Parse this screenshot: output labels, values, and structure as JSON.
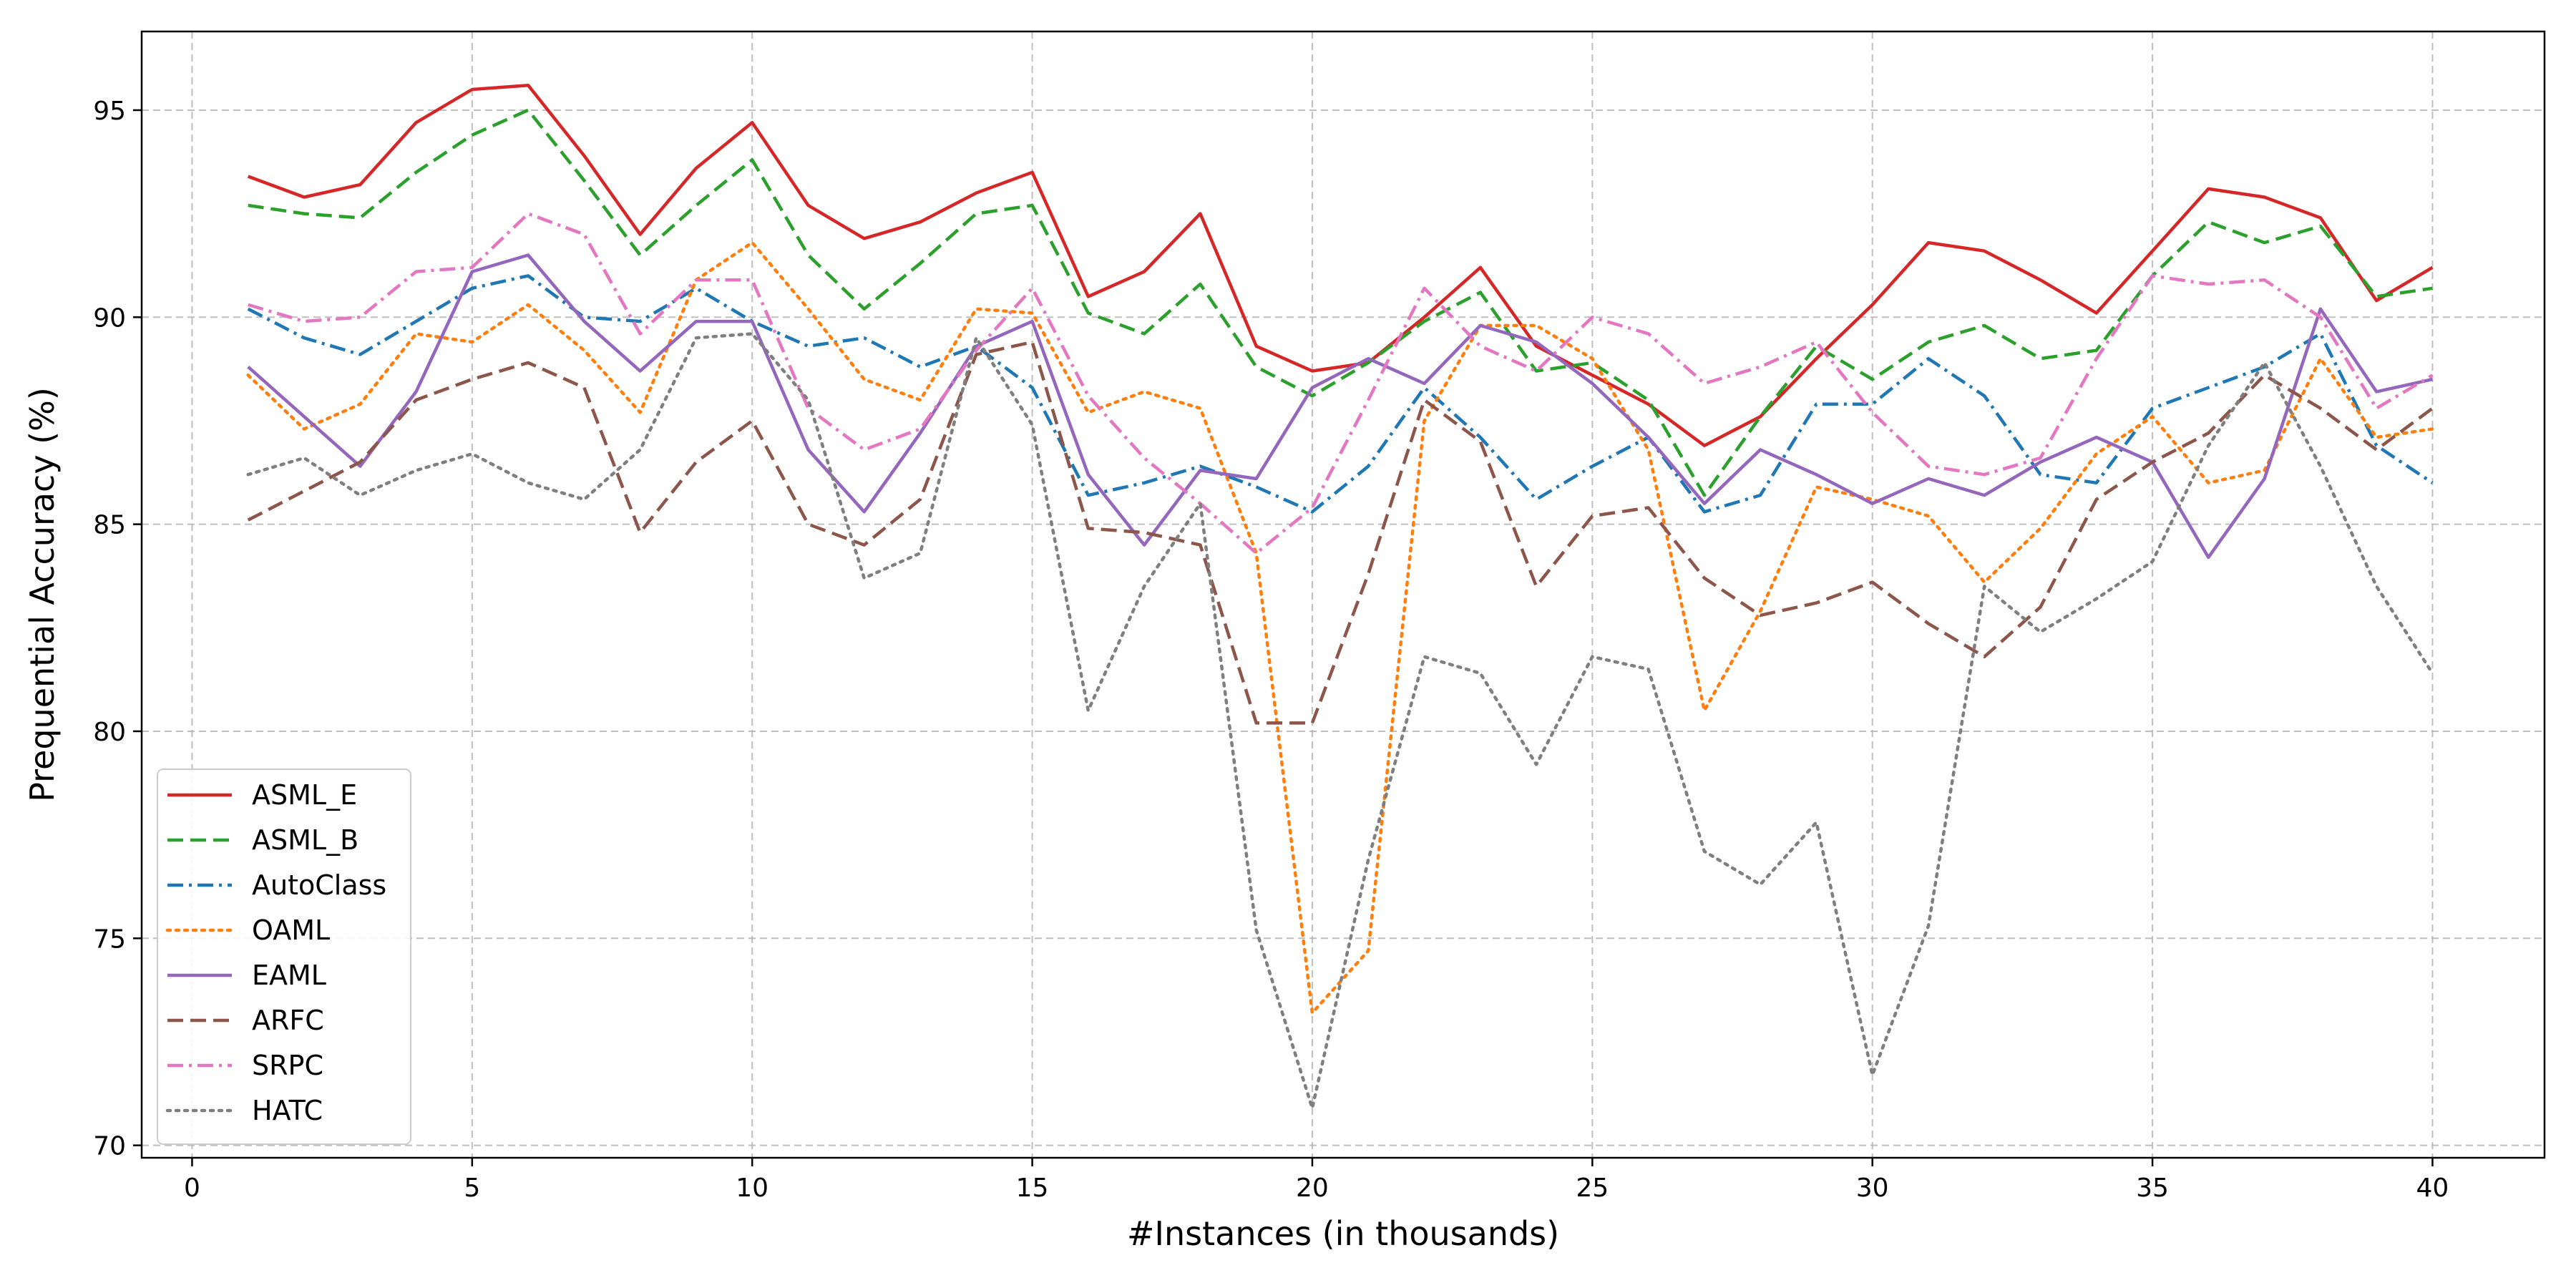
{
  "chart_data": {
    "type": "line",
    "xlabel": "#Instances (in thousands)",
    "ylabel": "Prequential Accuracy (%)",
    "xlim": [
      -0.9,
      42
    ],
    "ylim": [
      69.7,
      96.9
    ],
    "xticks": [
      0,
      5,
      10,
      15,
      20,
      25,
      30,
      35,
      40
    ],
    "yticks": [
      70,
      75,
      80,
      85,
      90,
      95
    ],
    "grid": true,
    "legend": "lower-left",
    "x": [
      1,
      2,
      3,
      4,
      5,
      6,
      7,
      8,
      9,
      10,
      11,
      12,
      13,
      14,
      15,
      16,
      17,
      18,
      19,
      20,
      21,
      22,
      23,
      24,
      25,
      26,
      27,
      28,
      29,
      30,
      31,
      32,
      33,
      34,
      35,
      36,
      37,
      38,
      39,
      40
    ],
    "series": [
      {
        "name": "ASML_E",
        "color": "#d62728",
        "dash": "solid",
        "values": [
          93.4,
          92.9,
          93.2,
          94.7,
          95.5,
          95.6,
          93.9,
          92.0,
          93.6,
          94.7,
          92.7,
          91.9,
          92.3,
          93.0,
          93.5,
          90.5,
          91.1,
          92.5,
          89.3,
          88.7,
          88.9,
          90.0,
          91.2,
          89.3,
          88.6,
          87.9,
          86.9,
          87.6,
          89.0,
          90.3,
          91.8,
          91.6,
          90.9,
          90.1,
          91.6,
          93.1,
          92.9,
          92.4,
          90.4,
          91.2
        ]
      },
      {
        "name": "ASML_B",
        "color": "#2ca02c",
        "dash": "dashed",
        "values": [
          92.7,
          92.5,
          92.4,
          93.5,
          94.4,
          95.0,
          93.3,
          91.5,
          92.7,
          93.8,
          91.5,
          90.2,
          91.3,
          92.5,
          92.7,
          90.1,
          89.6,
          90.8,
          88.8,
          88.1,
          88.9,
          89.9,
          90.6,
          88.7,
          88.9,
          88.0,
          85.7,
          87.6,
          89.3,
          88.5,
          89.4,
          89.8,
          89.0,
          89.2,
          91.0,
          92.3,
          91.8,
          92.2,
          90.5,
          90.7
        ]
      },
      {
        "name": "AutoClass",
        "color": "#1f77b4",
        "dash": "dashdot",
        "values": [
          90.2,
          89.5,
          89.1,
          89.9,
          90.7,
          91.0,
          90.0,
          89.9,
          90.7,
          89.9,
          89.3,
          89.5,
          88.8,
          89.3,
          88.3,
          85.7,
          86.0,
          86.4,
          85.9,
          85.3,
          86.4,
          88.3,
          87.1,
          85.6,
          86.4,
          87.1,
          85.3,
          85.7,
          87.9,
          87.9,
          89.0,
          88.1,
          86.2,
          86.0,
          87.8,
          88.3,
          88.8,
          89.6,
          86.9,
          86.0
        ]
      },
      {
        "name": "OAML",
        "color": "#ff7f0e",
        "dash": "dotted",
        "values": [
          88.6,
          87.3,
          87.9,
          89.6,
          89.4,
          90.3,
          89.2,
          87.7,
          90.9,
          91.8,
          90.2,
          88.5,
          88.0,
          90.2,
          90.1,
          87.7,
          88.2,
          87.8,
          84.3,
          73.2,
          74.7,
          87.5,
          89.8,
          89.8,
          89.0,
          86.8,
          80.5,
          82.9,
          85.9,
          85.6,
          85.2,
          83.6,
          84.9,
          86.7,
          87.6,
          86.0,
          86.3,
          89.0,
          87.1,
          87.3
        ]
      },
      {
        "name": "EAML",
        "color": "#9467bd",
        "dash": "solid",
        "values": [
          88.8,
          87.6,
          86.4,
          88.2,
          91.1,
          91.5,
          89.9,
          88.7,
          89.9,
          89.9,
          86.8,
          85.3,
          87.2,
          89.3,
          89.9,
          86.2,
          84.5,
          86.3,
          86.1,
          88.3,
          89.0,
          88.4,
          89.8,
          89.4,
          88.4,
          87.1,
          85.5,
          86.8,
          86.2,
          85.5,
          86.1,
          85.7,
          86.5,
          87.1,
          86.5,
          84.2,
          86.1,
          90.2,
          88.2,
          88.5
        ]
      },
      {
        "name": "ARFC",
        "color": "#8c564b",
        "dash": "dashed",
        "values": [
          85.1,
          85.8,
          86.5,
          88.0,
          88.5,
          88.9,
          88.3,
          84.8,
          86.5,
          87.5,
          85.0,
          84.5,
          85.6,
          89.1,
          89.4,
          84.9,
          84.8,
          84.5,
          80.2,
          80.2,
          83.8,
          88.0,
          87.0,
          83.5,
          85.2,
          85.4,
          83.7,
          82.8,
          83.1,
          83.6,
          82.6,
          81.8,
          83.0,
          85.6,
          86.5,
          87.2,
          88.6,
          87.8,
          86.8,
          87.8
        ]
      },
      {
        "name": "SRPC",
        "color": "#e377c2",
        "dash": "dashdot",
        "values": [
          90.3,
          89.9,
          90.0,
          91.1,
          91.2,
          92.5,
          92.0,
          89.6,
          90.9,
          90.9,
          87.8,
          86.8,
          87.3,
          89.2,
          90.7,
          88.1,
          86.6,
          85.5,
          84.3,
          85.4,
          88.0,
          90.7,
          89.3,
          88.7,
          90.0,
          89.6,
          88.4,
          88.8,
          89.4,
          87.7,
          86.4,
          86.2,
          86.6,
          89.0,
          91.0,
          90.8,
          90.9,
          90.0,
          87.8,
          88.6
        ]
      },
      {
        "name": "HATC",
        "color": "#7f7f7f",
        "dash": "dotted",
        "values": [
          86.2,
          86.6,
          85.7,
          86.3,
          86.7,
          86.0,
          85.6,
          86.8,
          89.5,
          89.6,
          88.0,
          83.7,
          84.3,
          89.5,
          87.4,
          80.5,
          83.5,
          85.5,
          75.2,
          70.9,
          76.9,
          81.8,
          81.4,
          79.2,
          81.8,
          81.5,
          77.1,
          76.3,
          77.8,
          71.7,
          75.3,
          83.5,
          82.4,
          83.2,
          84.1,
          86.9,
          88.9,
          86.4,
          83.5,
          81.4
        ]
      }
    ]
  }
}
